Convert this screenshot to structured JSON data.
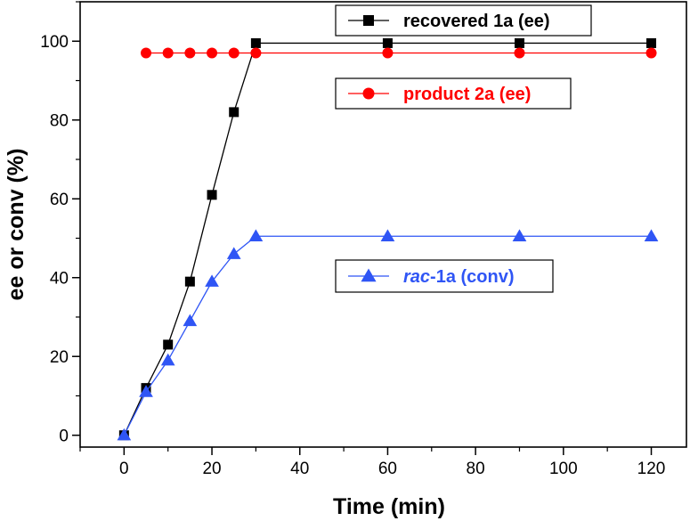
{
  "chart_data": {
    "type": "line",
    "xlabel": "Time (min)",
    "ylabel": "ee or conv (%)",
    "xlim": [
      -10,
      128
    ],
    "ylim": [
      -3,
      110
    ],
    "xticks": [
      0,
      20,
      40,
      60,
      80,
      100,
      120
    ],
    "yticks": [
      0,
      20,
      40,
      60,
      80,
      100
    ],
    "grid": false,
    "legend_placement": "inside, one box per series next to its line",
    "series": [
      {
        "name": "recovered 1a (ee)",
        "legend": {
          "prefix": "",
          "rest": "recovered 1a (ee)"
        },
        "color": "#000000",
        "marker": "square",
        "x": [
          0,
          5,
          10,
          15,
          20,
          25,
          30,
          60,
          90,
          120
        ],
        "y": [
          0,
          12,
          23,
          39,
          61,
          82,
          99.5,
          99.5,
          99.5,
          99.5
        ]
      },
      {
        "name": "product 2a (ee)",
        "legend": {
          "prefix": "",
          "rest": "product 2a (ee)"
        },
        "color": "#ff0000",
        "marker": "circle",
        "x": [
          5,
          10,
          15,
          20,
          25,
          30,
          60,
          90,
          120
        ],
        "y": [
          97,
          97,
          97,
          97,
          97,
          97,
          97,
          97,
          97
        ]
      },
      {
        "name": "rac-1a (conv)",
        "legend": {
          "prefix": "rac",
          "rest": "-1a (conv)"
        },
        "color": "#2f55f5",
        "marker": "triangle",
        "x": [
          0,
          5,
          10,
          15,
          20,
          25,
          30,
          60,
          90,
          120
        ],
        "y": [
          0,
          11,
          19,
          29,
          39,
          46,
          50.5,
          50.5,
          50.5,
          50.5
        ]
      }
    ]
  }
}
